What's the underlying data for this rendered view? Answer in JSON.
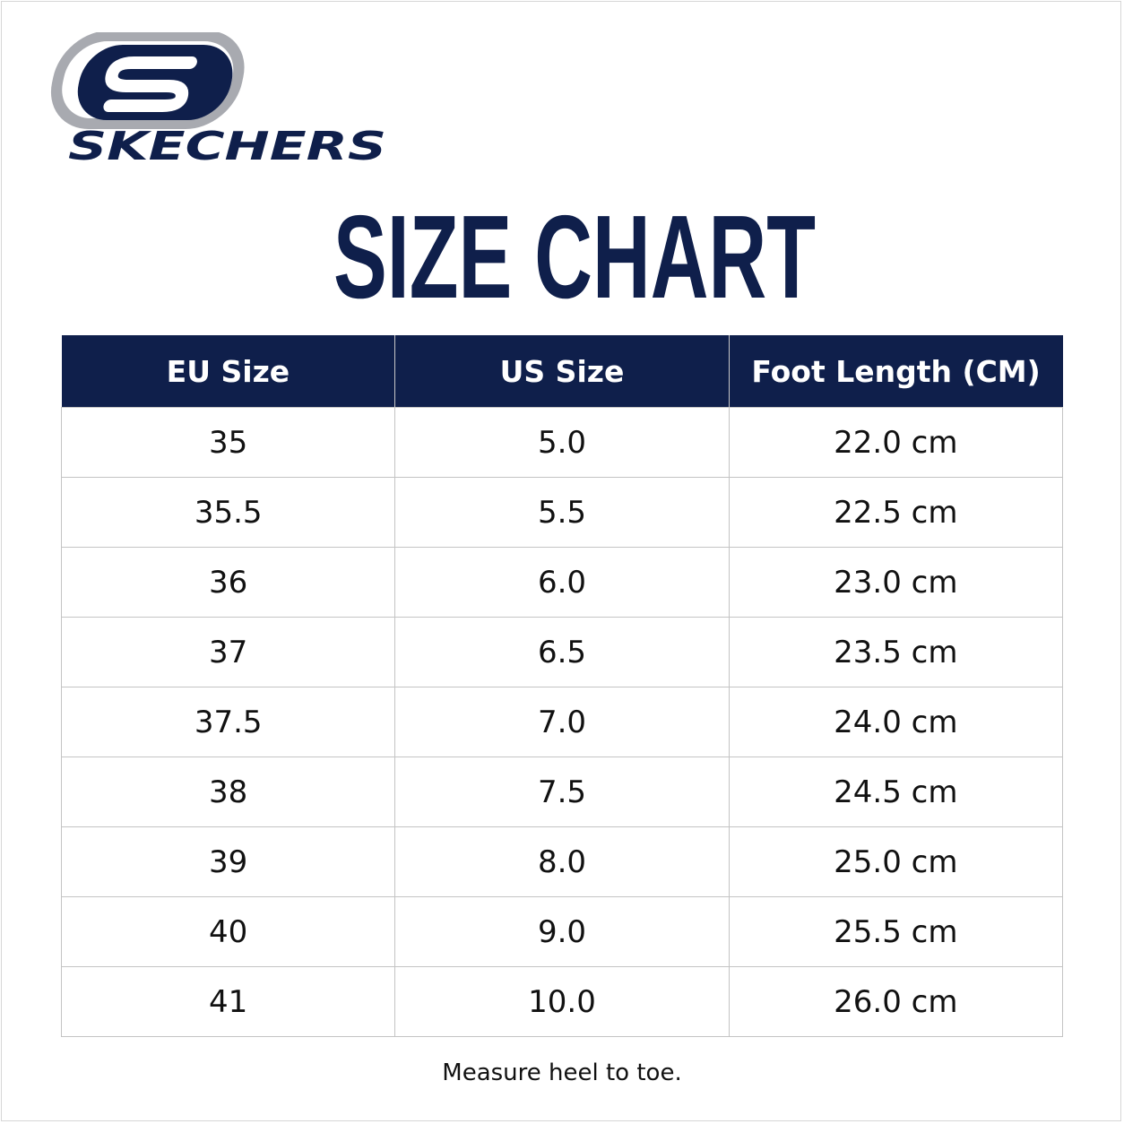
{
  "logo": {
    "brand": "SKECHERS"
  },
  "header": {
    "title": "SIZE CHART"
  },
  "table": {
    "columns": [
      "EU Size",
      "US Size",
      "Foot Length (CM)"
    ],
    "rows": [
      [
        "35",
        "5.0",
        "22.0 cm"
      ],
      [
        "35.5",
        "5.5",
        "22.5 cm"
      ],
      [
        "36",
        "6.0",
        "23.0 cm"
      ],
      [
        "37",
        "6.5",
        "23.5 cm"
      ],
      [
        "37.5",
        "7.0",
        "24.0 cm"
      ],
      [
        "38",
        "7.5",
        "24.5 cm"
      ],
      [
        "39",
        "8.0",
        "25.0 cm"
      ],
      [
        "40",
        "9.0",
        "25.5 cm"
      ],
      [
        "41",
        "10.0",
        "26.0 cm"
      ]
    ]
  },
  "footer": {
    "note": "Measure heel to toe."
  }
}
